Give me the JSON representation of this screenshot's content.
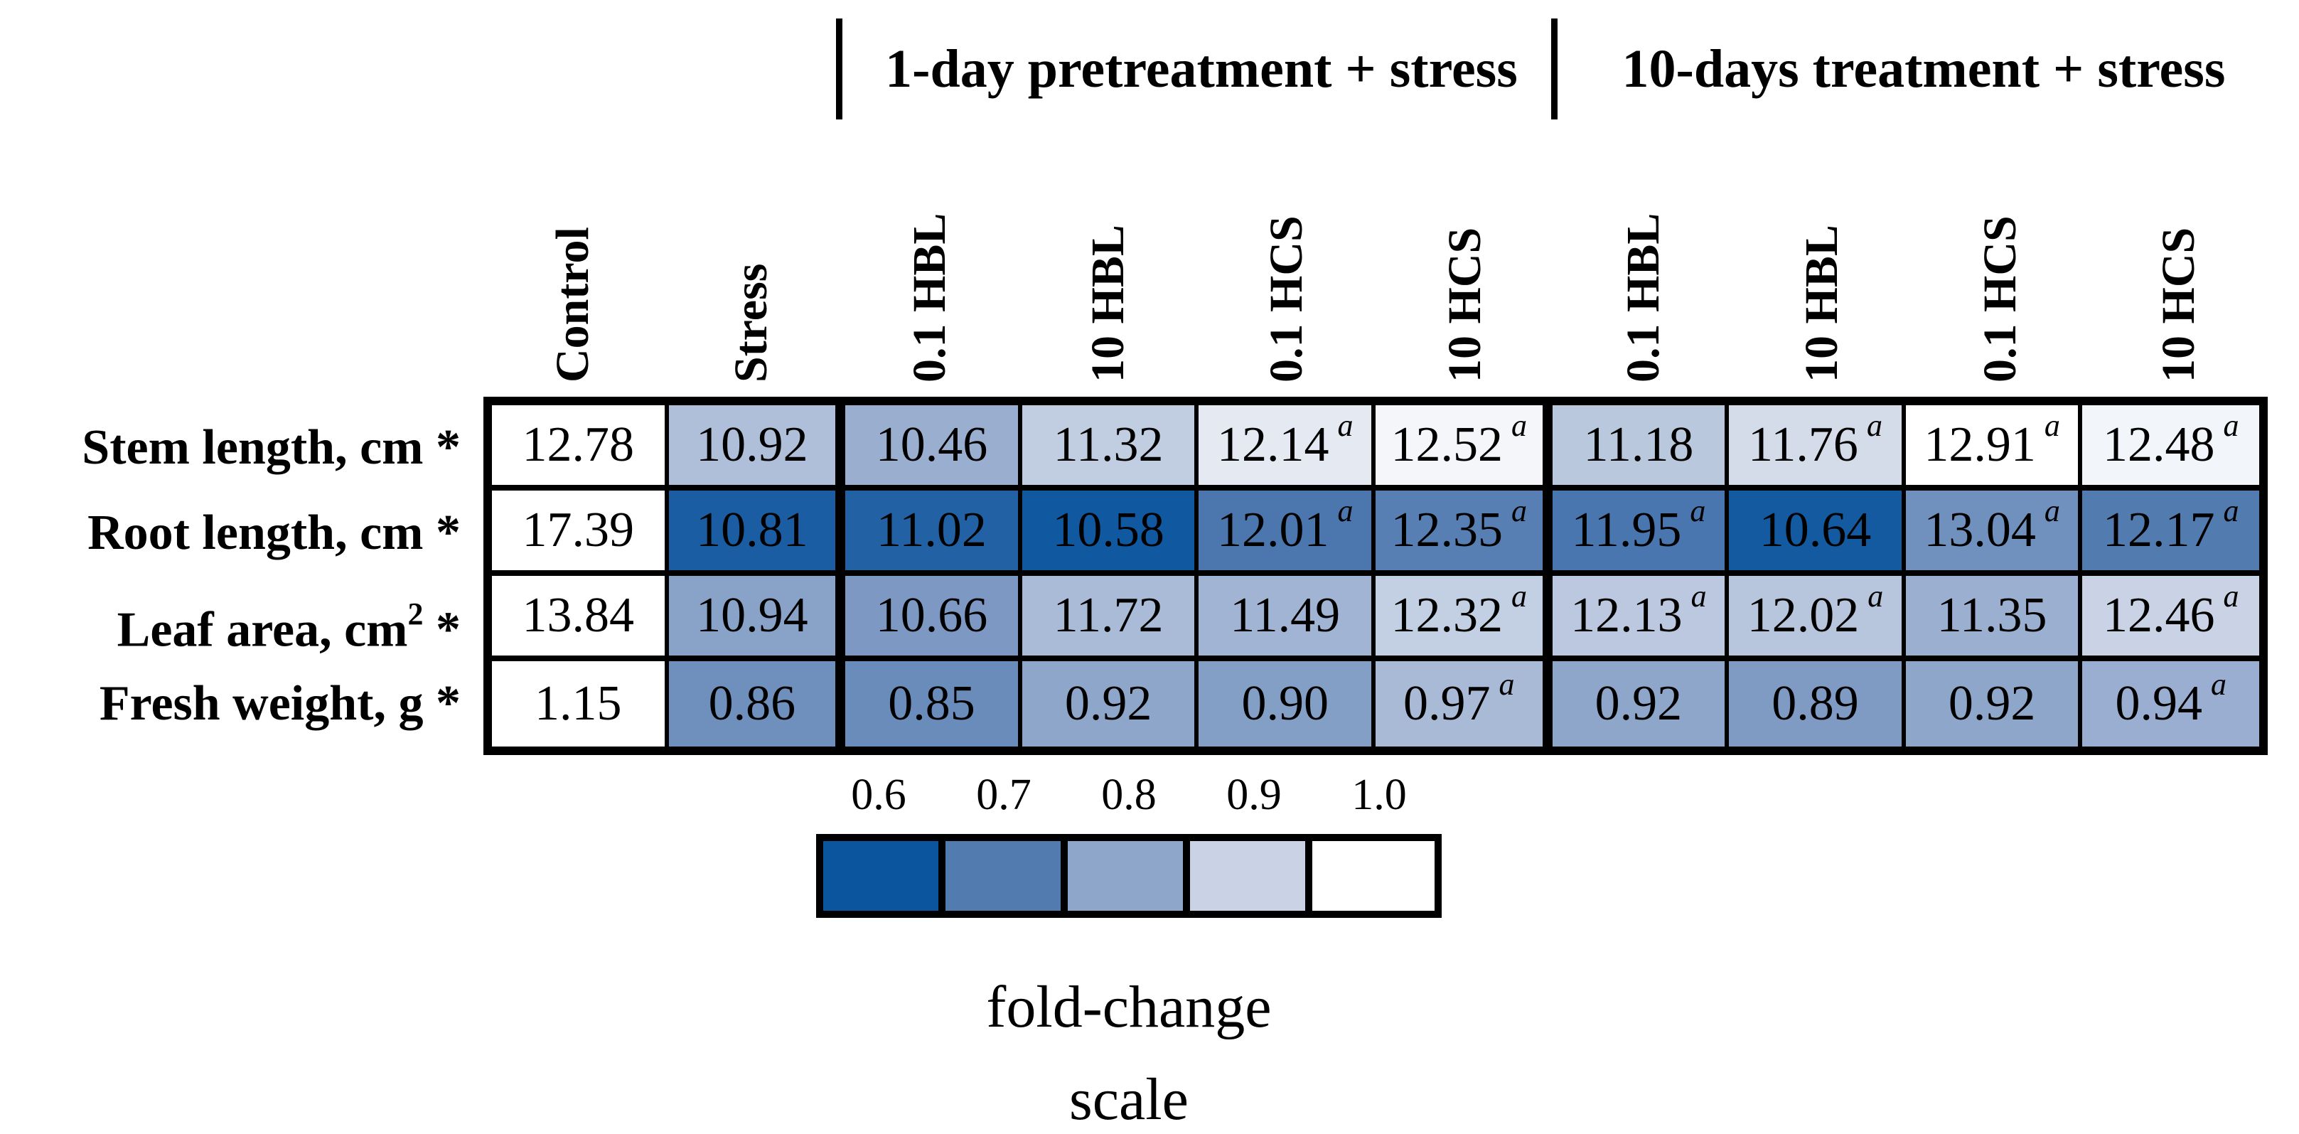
{
  "chart_data": {
    "type": "heatmap",
    "title": "",
    "column_groups": [
      {
        "label": "1-day pretreatment + stress",
        "columns": [
          2,
          5
        ]
      },
      {
        "label": "10-days treatment + stress",
        "columns": [
          6,
          9
        ]
      }
    ],
    "columns": [
      "Control",
      "Stress",
      "0.1 HBL",
      "10 HBL",
      "0.1 HCS",
      "10 HCS",
      "0.1 HBL",
      "10 HBL",
      "0.1 HCS",
      "10 HCS"
    ],
    "rows": [
      {
        "label": "Stem length, cm",
        "label_sup": "",
        "label_suffix": " *",
        "cells": [
          {
            "v": "12.78",
            "a": false
          },
          {
            "v": "10.92",
            "a": false
          },
          {
            "v": "10.46",
            "a": false
          },
          {
            "v": "11.32",
            "a": false
          },
          {
            "v": "12.14",
            "a": true
          },
          {
            "v": "12.52",
            "a": true
          },
          {
            "v": "11.18",
            "a": false
          },
          {
            "v": "11.76",
            "a": true
          },
          {
            "v": "12.91",
            "a": true
          },
          {
            "v": "12.48",
            "a": true
          }
        ]
      },
      {
        "label": "Root length, cm",
        "label_sup": "",
        "label_suffix": " *",
        "cells": [
          {
            "v": "17.39",
            "a": false
          },
          {
            "v": "10.81",
            "a": false
          },
          {
            "v": "11.02",
            "a": false
          },
          {
            "v": "10.58",
            "a": false
          },
          {
            "v": "12.01",
            "a": true
          },
          {
            "v": "12.35",
            "a": true
          },
          {
            "v": "11.95",
            "a": true
          },
          {
            "v": "10.64",
            "a": false
          },
          {
            "v": "13.04",
            "a": true
          },
          {
            "v": "12.17",
            "a": true
          }
        ]
      },
      {
        "label": "Leaf area, cm",
        "label_sup": "2",
        "label_suffix": " *",
        "cells": [
          {
            "v": "13.84",
            "a": false
          },
          {
            "v": "10.94",
            "a": false
          },
          {
            "v": "10.66",
            "a": false
          },
          {
            "v": "11.72",
            "a": false
          },
          {
            "v": "11.49",
            "a": false
          },
          {
            "v": "12.32",
            "a": true
          },
          {
            "v": "12.13",
            "a": true
          },
          {
            "v": "12.02",
            "a": true
          },
          {
            "v": "11.35",
            "a": false
          },
          {
            "v": "12.46",
            "a": true
          }
        ]
      },
      {
        "label": "Fresh weight, g",
        "label_sup": "",
        "label_suffix": " *",
        "cells": [
          {
            "v": "1.15",
            "a": false
          },
          {
            "v": "0.86",
            "a": false
          },
          {
            "v": "0.85",
            "a": false
          },
          {
            "v": "0.92",
            "a": false
          },
          {
            "v": "0.90",
            "a": false
          },
          {
            "v": "0.97",
            "a": true
          },
          {
            "v": "0.92",
            "a": false
          },
          {
            "v": "0.89",
            "a": false
          },
          {
            "v": "0.92",
            "a": false
          },
          {
            "v": "0.94",
            "a": true
          }
        ]
      }
    ],
    "significance_marker": "a",
    "color_scale": {
      "ticks": [
        "0.6",
        "0.7",
        "0.8",
        "0.9",
        "1.0"
      ],
      "tick_values": [
        0.6,
        0.7,
        0.8,
        0.9,
        1.0
      ],
      "colors": [
        "#0A559E",
        "#527BB0",
        "#8FA6CB",
        "#C9D3E5",
        "#FFFFFF"
      ],
      "caption_line1": "fold-change",
      "caption_line2": "scale",
      "mapping": "cell background = fold-change (value / control of its row), clamped to 0.6-1.0, dark blue = 0.6, white = 1.0"
    },
    "layout": {
      "legend_position": "bottom",
      "grid": "black cell borders, thick separators around treatment groups"
    }
  }
}
